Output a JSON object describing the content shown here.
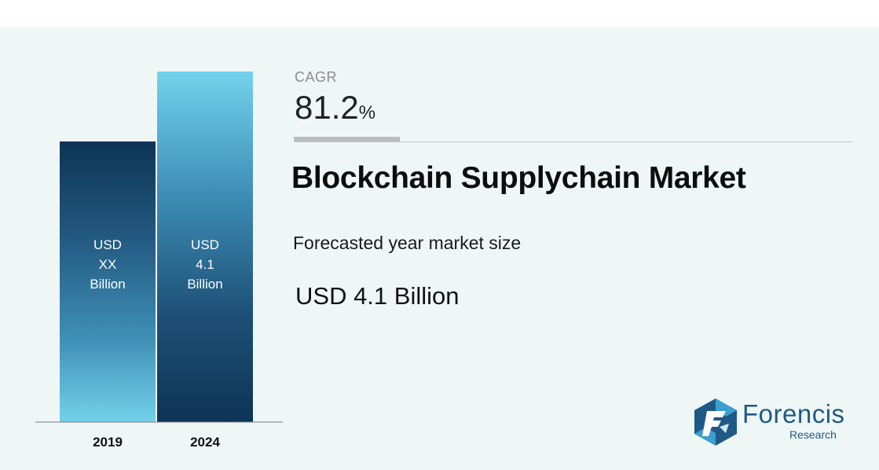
{
  "chart_data": {
    "type": "bar",
    "categories": [
      "2019",
      "2024"
    ],
    "values": [
      null,
      4.1
    ],
    "bar_labels": [
      [
        "USD",
        "XX",
        "Billion"
      ],
      [
        "USD",
        "4.1",
        "Billion"
      ]
    ],
    "colors": {
      "bar_dark": "#0d3456",
      "bar_mid": "#3e8fb5",
      "bar_light": "#6fd0ea",
      "axis": "#7a7a7a"
    },
    "xlabel": "",
    "ylabel": "",
    "grid": false
  },
  "cagr": {
    "label": "CAGR",
    "value": "81.2",
    "unit": "%"
  },
  "market": {
    "title": "Blockchain Supplychain Market",
    "forecast_label": "Forecasted year market size",
    "size": "USD 4.1 Billion"
  },
  "logo": {
    "name": "Forencis",
    "sub": "Research",
    "colors": {
      "primary": "#1f5a86",
      "accent": "#3d9fd0"
    },
    "icon": "forencis-hexagon-logo-icon"
  }
}
